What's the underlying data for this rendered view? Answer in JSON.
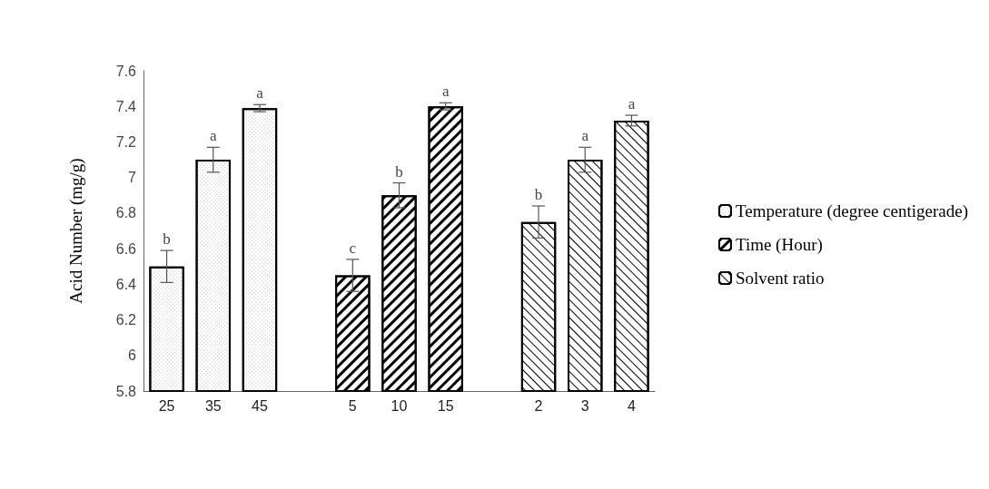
{
  "chart_data": {
    "type": "bar",
    "ylabel": "Acid Number (mg/g)",
    "categories": [
      "25",
      "35",
      "45",
      null,
      "5",
      "10",
      "15",
      null,
      "2",
      "3",
      "4"
    ],
    "series": [
      {
        "name": "Temperature (degree centigerade)",
        "color": "#000000",
        "values": [
          6.5,
          7.1,
          7.39,
          null,
          null,
          null,
          null,
          null,
          null,
          null,
          null
        ],
        "errors": [
          0.09,
          0.07,
          0.02,
          null,
          null,
          null,
          null,
          null,
          null,
          null,
          null
        ]
      },
      {
        "name": "Time (Hour)",
        "color": "#000000",
        "values": [
          null,
          null,
          null,
          null,
          6.45,
          6.9,
          7.4,
          null,
          null,
          null,
          null
        ],
        "errors": [
          null,
          null,
          null,
          null,
          0.09,
          0.07,
          0.02,
          null,
          null,
          null,
          null
        ]
      },
      {
        "name": "Solvent ratio",
        "color": "#000000",
        "values": [
          null,
          null,
          null,
          null,
          null,
          null,
          null,
          null,
          6.75,
          7.1,
          7.32
        ],
        "errors": [
          null,
          null,
          null,
          null,
          null,
          null,
          null,
          null,
          0.09,
          0.07,
          0.03
        ]
      }
    ],
    "annotations": [
      {
        "text": "b",
        "x": "25",
        "y": 6.59
      },
      {
        "text": "a",
        "x": "35",
        "y": 7.17
      },
      {
        "text": "a",
        "x": "45",
        "y": 7.41
      },
      {
        "text": "c",
        "x": "5",
        "y": 6.54
      },
      {
        "text": "b",
        "x": "10",
        "y": 6.97
      },
      {
        "text": "a",
        "x": "15",
        "y": 7.42
      },
      {
        "text": "b",
        "x": "2",
        "y": 6.84
      },
      {
        "text": "a",
        "x": "3",
        "y": 7.17
      },
      {
        "text": "a",
        "x": "4",
        "y": 7.35
      }
    ],
    "ylim": [
      5.8,
      7.6
    ],
    "yticks": [
      5.8,
      6,
      6.2,
      6.4,
      6.6,
      6.8,
      7,
      7.2,
      7.4,
      7.6
    ],
    "grid": false,
    "legend": "right"
  }
}
